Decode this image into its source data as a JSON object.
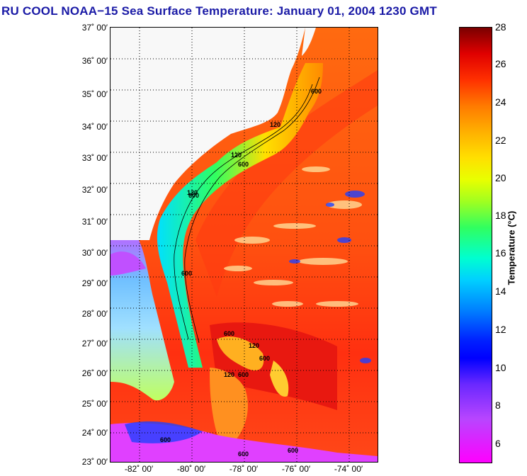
{
  "title": "RU COOL  NOAA−15  Sea Surface Temperature:  January 01, 2004 1230 GMT",
  "lat_labels": [
    "37˚ 00′",
    "36˚ 00′",
    "35˚ 00′",
    "34˚ 00′",
    "33˚ 00′",
    "32˚ 00′",
    "31˚ 00′",
    "30˚ 00′",
    "29˚ 00′",
    "28˚ 00′",
    "27˚ 00′",
    "26˚ 00′",
    "25˚ 00′",
    "24˚ 00′",
    "23˚ 00′"
  ],
  "lon_labels": [
    "-82˚ 00′",
    "-80˚ 00′",
    "-78˚ 00′",
    "-76˚ 00′",
    "-74˚ 00′"
  ],
  "colorbar": {
    "ticks": [
      "28",
      "26",
      "24",
      "22",
      "20",
      "18",
      "16",
      "14",
      "12",
      "10",
      "8",
      "6"
    ],
    "label": "Temperature (°C)"
  },
  "isobath_labels": [
    "600",
    "120",
    "600",
    "120",
    "600",
    "120",
    "600",
    "600",
    "120",
    "600",
    "120",
    "600",
    "600",
    "600",
    "600"
  ]
}
